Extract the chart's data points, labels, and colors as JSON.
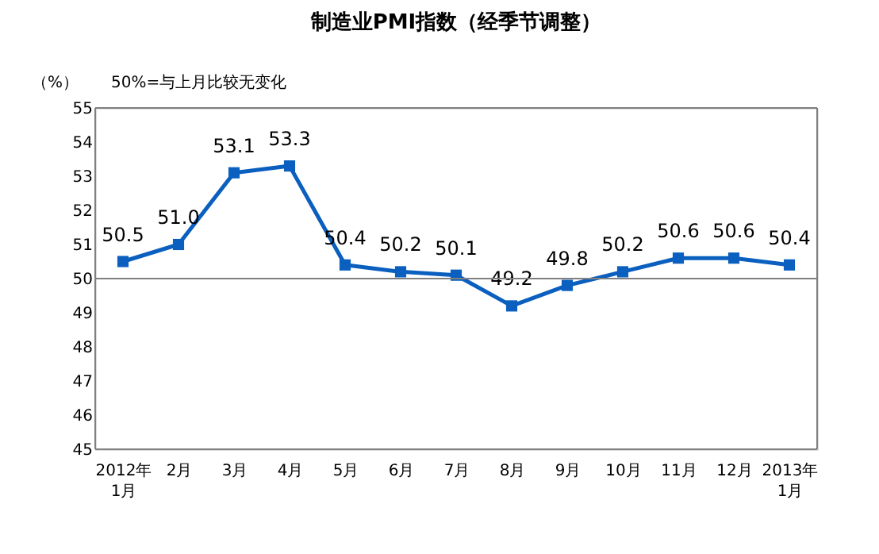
{
  "chart_data": {
    "type": "line",
    "title": "制造业PMI指数（经季节调整）",
    "ylabel": "（%）",
    "annotations": [
      "50%=与上月比较无变化"
    ],
    "categories": [
      "2012年\n1月",
      "2月",
      "3月",
      "4月",
      "5月",
      "6月",
      "7月",
      "8月",
      "9月",
      "10月",
      "11月",
      "12月",
      "2013年\n1月"
    ],
    "series": [
      {
        "color": "#0a5fbf",
        "values": [
          50.5,
          51.0,
          53.1,
          53.3,
          50.4,
          50.2,
          50.1,
          49.2,
          49.8,
          50.2,
          50.6,
          50.6,
          50.4
        ]
      }
    ],
    "ylim": [
      45,
      55
    ],
    "yticks": [
      45,
      46,
      47,
      48,
      49,
      50,
      51,
      52,
      53,
      54,
      55
    ],
    "ref_lines": [
      {
        "axis": "y",
        "value": 50,
        "color": "#808080"
      }
    ],
    "value_labels": [
      "50.5",
      "51.0",
      "53.1",
      "53.3",
      "50.4",
      "50.2",
      "50.1",
      "49.2",
      "49.8",
      "50.2",
      "50.6",
      "50.6",
      "50.4"
    ],
    "marker": "square",
    "line_style": "solid",
    "grid": false
  }
}
